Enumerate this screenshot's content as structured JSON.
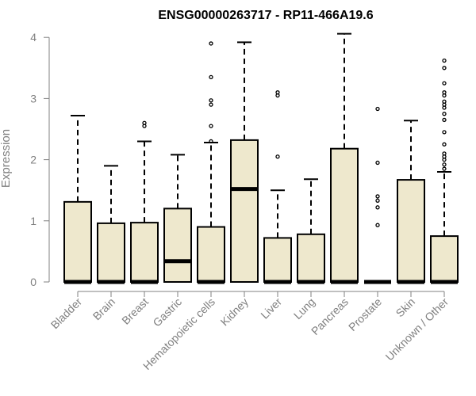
{
  "chart_data": {
    "type": "box",
    "title": "ENSG00000263717 - RP11-466A19.6",
    "xlabel": "",
    "ylabel": "Expression",
    "ylim": [
      0,
      4
    ],
    "yticks": [
      0,
      1,
      2,
      3,
      4
    ],
    "box_fill": "#EEE8CD",
    "categories": [
      "Bladder",
      "Brain",
      "Breast",
      "Gastric",
      "Hematopoietic cells",
      "Kidney",
      "Liver",
      "Lung",
      "Pancreas",
      "Prostate",
      "Skin",
      "Unknown / Other"
    ],
    "boxes": [
      {
        "q1": 0,
        "median": 0,
        "q3": 1.31,
        "whisker_low": 0,
        "whisker_high": 2.72,
        "outliers": []
      },
      {
        "q1": 0,
        "median": 0,
        "q3": 0.96,
        "whisker_low": 0,
        "whisker_high": 1.9,
        "outliers": []
      },
      {
        "q1": 0,
        "median": 0,
        "q3": 0.97,
        "whisker_low": 0,
        "whisker_high": 2.3,
        "outliers": [
          2.55,
          2.6
        ]
      },
      {
        "q1": 0,
        "median": 0.34,
        "q3": 1.2,
        "whisker_low": 0,
        "whisker_high": 2.08,
        "outliers": []
      },
      {
        "q1": 0,
        "median": 0,
        "q3": 0.9,
        "whisker_low": 0,
        "whisker_high": 2.28,
        "outliers": [
          2.3,
          2.55,
          2.9,
          2.97,
          3.35,
          3.9
        ]
      },
      {
        "q1": 0,
        "median": 1.52,
        "q3": 2.32,
        "whisker_low": 0,
        "whisker_high": 3.92,
        "outliers": []
      },
      {
        "q1": 0,
        "median": 0,
        "q3": 0.72,
        "whisker_low": 0,
        "whisker_high": 1.5,
        "outliers": [
          2.05,
          3.05,
          3.1
        ]
      },
      {
        "q1": 0,
        "median": 0,
        "q3": 0.78,
        "whisker_low": 0,
        "whisker_high": 1.68,
        "outliers": []
      },
      {
        "q1": 0,
        "median": 0,
        "q3": 2.18,
        "whisker_low": 0,
        "whisker_high": 4.06,
        "outliers": []
      },
      {
        "q1": 0,
        "median": 0,
        "q3": 0,
        "whisker_low": 0,
        "whisker_high": 0,
        "outliers": [
          0.93,
          1.22,
          1.33,
          1.4,
          1.95,
          2.83
        ]
      },
      {
        "q1": 0,
        "median": 0,
        "q3": 1.67,
        "whisker_low": 0,
        "whisker_high": 2.64,
        "outliers": []
      },
      {
        "q1": 0,
        "median": 0,
        "q3": 0.75,
        "whisker_low": 0,
        "whisker_high": 1.8,
        "outliers": [
          1.85,
          1.92,
          2.0,
          2.05,
          2.1,
          2.25,
          2.45,
          2.65,
          2.75,
          2.85,
          2.9,
          2.95,
          3.05,
          3.1,
          3.25,
          3.5,
          3.62
        ]
      }
    ]
  }
}
